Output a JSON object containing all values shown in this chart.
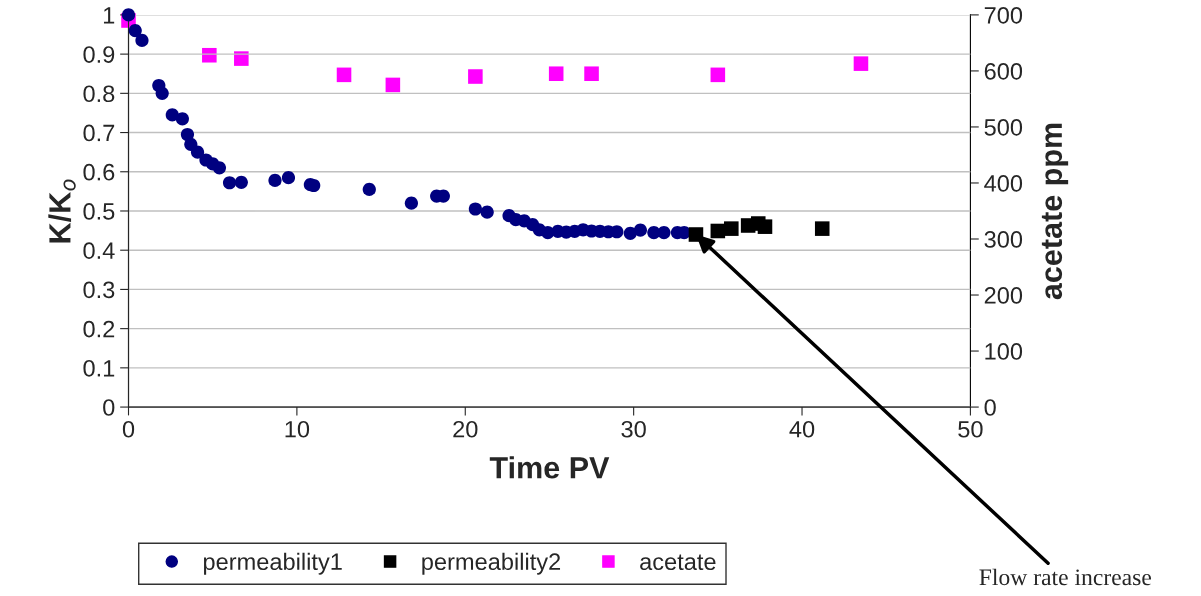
{
  "chart_data": {
    "type": "scatter",
    "xlabel": "Time PV",
    "ylabel": "K/K$_{o}$",
    "y2label": "acetate ppm",
    "xlim": [
      0,
      50
    ],
    "xticks": [
      0,
      10,
      20,
      30,
      40,
      50
    ],
    "ylim": [
      0,
      1
    ],
    "yticks": [
      0,
      0.1,
      0.2,
      0.3,
      0.4,
      0.5,
      0.6,
      0.7,
      0.8,
      0.9,
      1
    ],
    "y2lim": [
      0,
      700
    ],
    "y2ticks": [
      0,
      100,
      200,
      300,
      400,
      500,
      600,
      700
    ],
    "grid": "y",
    "legend": "bottom",
    "series": [
      {
        "name": "permeability1",
        "color": "#000080",
        "marker": "circle",
        "x": [
          0,
          0.4,
          0.8,
          1.8,
          2.0,
          2.6,
          3.2,
          3.5,
          3.7,
          4.1,
          4.6,
          5.0,
          5.4,
          6.0,
          6.7,
          8.7,
          9.5,
          10.8,
          11.0,
          14.3,
          16.8,
          18.3,
          18.7,
          20.6,
          21.3,
          22.6,
          23.0,
          23.5,
          24.0,
          24.4,
          24.9,
          25.5,
          26.0,
          26.5,
          27.0,
          27.5,
          28.0,
          28.5,
          29.0,
          29.8,
          30.4,
          31.2,
          31.8,
          32.6,
          33.0
        ],
        "values": [
          1.0,
          0.96,
          0.935,
          0.82,
          0.8,
          0.745,
          0.735,
          0.695,
          0.67,
          0.65,
          0.63,
          0.62,
          0.61,
          0.572,
          0.573,
          0.578,
          0.585,
          0.567,
          0.565,
          0.555,
          0.52,
          0.538,
          0.538,
          0.505,
          0.497,
          0.488,
          0.478,
          0.475,
          0.465,
          0.452,
          0.445,
          0.448,
          0.446,
          0.448,
          0.452,
          0.449,
          0.448,
          0.447,
          0.447,
          0.443,
          0.451,
          0.445,
          0.445,
          0.445,
          0.445
        ]
      },
      {
        "name": "permeability2",
        "color": "#000000",
        "marker": "square",
        "x": [
          33.7,
          35.0,
          35.8,
          36.8,
          37.4,
          37.8,
          41.2
        ],
        "values": [
          0.44,
          0.449,
          0.455,
          0.463,
          0.468,
          0.46,
          0.455
        ]
      },
      {
        "name": "acetate",
        "color": "#ff00ff",
        "marker": "square",
        "axis": "y2",
        "x": [
          0,
          4.8,
          6.7,
          12.8,
          15.7,
          20.6,
          25.4,
          27.5,
          35.0,
          43.5
        ],
        "values": [
          690,
          628,
          622,
          593,
          575,
          590,
          595,
          595,
          593,
          613
        ]
      }
    ],
    "annotations": [
      {
        "text": "Flow rate increase",
        "x": 33.7,
        "y": 0.44
      }
    ]
  }
}
